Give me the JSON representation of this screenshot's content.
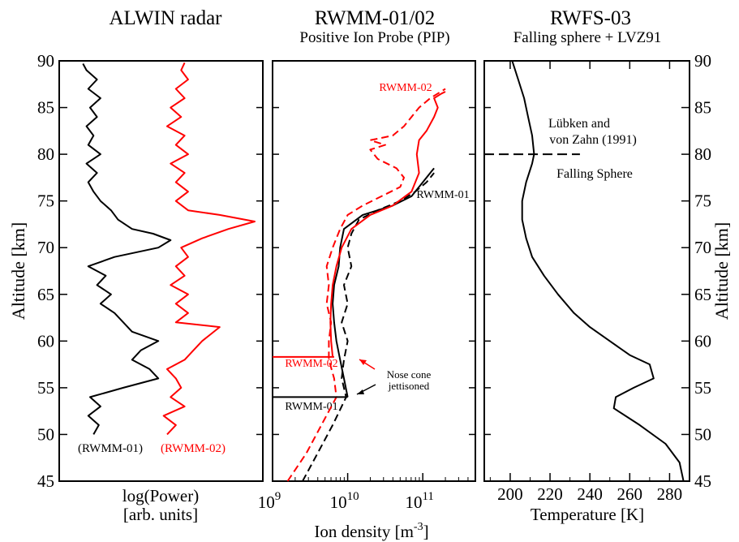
{
  "chart_data": [
    {
      "type": "line",
      "title": "ALWIN radar",
      "subtitle": "",
      "xlabel": "log(Power)",
      "xlabel2": "[arb. units]",
      "ylabel": "Altitude [km]",
      "ylim": [
        45,
        90
      ],
      "yticks": [
        "45",
        "50",
        "55",
        "60",
        "65",
        "70",
        "75",
        "80",
        "85",
        "90"
      ],
      "grid": false,
      "series": [
        {
          "name": "(RWMM-01)",
          "color": "#000000",
          "points": [
            [
              0.08,
              50
            ],
            [
              0.11,
              51
            ],
            [
              0.05,
              52
            ],
            [
              0.12,
              53
            ],
            [
              0.06,
              54
            ],
            [
              0.25,
              55
            ],
            [
              0.45,
              56
            ],
            [
              0.4,
              57
            ],
            [
              0.3,
              58
            ],
            [
              0.35,
              59
            ],
            [
              0.45,
              60
            ],
            [
              0.3,
              61
            ],
            [
              0.25,
              62
            ],
            [
              0.2,
              63
            ],
            [
              0.12,
              64
            ],
            [
              0.18,
              65
            ],
            [
              0.1,
              66
            ],
            [
              0.15,
              67
            ],
            [
              0.05,
              68
            ],
            [
              0.2,
              69
            ],
            [
              0.45,
              70
            ],
            [
              0.52,
              70.8
            ],
            [
              0.42,
              71.5
            ],
            [
              0.3,
              72
            ],
            [
              0.22,
              73
            ],
            [
              0.18,
              74
            ],
            [
              0.12,
              75
            ],
            [
              0.08,
              76
            ],
            [
              0.05,
              77
            ],
            [
              0.1,
              78
            ],
            [
              0.04,
              79
            ],
            [
              0.12,
              80
            ],
            [
              0.05,
              81
            ],
            [
              0.08,
              82
            ],
            [
              0.04,
              83
            ],
            [
              0.1,
              84
            ],
            [
              0.06,
              85
            ],
            [
              0.12,
              86
            ],
            [
              0.05,
              87
            ],
            [
              0.1,
              88
            ],
            [
              0.04,
              89
            ],
            [
              0.02,
              89.7
            ]
          ]
        },
        {
          "name": "(RWMM-02)",
          "color": "#ff0000",
          "points": [
            [
              0.5,
              50
            ],
            [
              0.55,
              51
            ],
            [
              0.48,
              52
            ],
            [
              0.6,
              53
            ],
            [
              0.52,
              54
            ],
            [
              0.58,
              55
            ],
            [
              0.55,
              56
            ],
            [
              0.5,
              57
            ],
            [
              0.6,
              58
            ],
            [
              0.65,
              59
            ],
            [
              0.7,
              60
            ],
            [
              0.8,
              61.5
            ],
            [
              0.55,
              62
            ],
            [
              0.62,
              63
            ],
            [
              0.55,
              64
            ],
            [
              0.62,
              65
            ],
            [
              0.52,
              66
            ],
            [
              0.6,
              67
            ],
            [
              0.55,
              68
            ],
            [
              0.62,
              69
            ],
            [
              0.58,
              70
            ],
            [
              0.7,
              71
            ],
            [
              0.85,
              72
            ],
            [
              1.0,
              72.8
            ],
            [
              0.8,
              73.5
            ],
            [
              0.62,
              74
            ],
            [
              0.55,
              75
            ],
            [
              0.62,
              76
            ],
            [
              0.55,
              77
            ],
            [
              0.6,
              78
            ],
            [
              0.52,
              79
            ],
            [
              0.62,
              80
            ],
            [
              0.55,
              81
            ],
            [
              0.6,
              82
            ],
            [
              0.5,
              83
            ],
            [
              0.58,
              84
            ],
            [
              0.52,
              85
            ],
            [
              0.6,
              86
            ],
            [
              0.55,
              87
            ],
            [
              0.62,
              88
            ],
            [
              0.58,
              89
            ],
            [
              0.6,
              89.8
            ]
          ]
        }
      ],
      "legend": [
        "(RWMM-01)",
        "(RWMM-02)"
      ]
    },
    {
      "type": "line",
      "title": "RWMM-01/02",
      "subtitle": "Positive Ion Probe (PIP)",
      "xlabel": "Ion density [m",
      "xlabel_sup": "-3",
      "xlabel_end": "]",
      "xscale": "log",
      "xlim_exp": [
        9,
        11.7
      ],
      "xticks": [
        {
          "base": "10",
          "exp": "9"
        },
        {
          "base": "10",
          "exp": "10"
        },
        {
          "base": "10",
          "exp": "11"
        }
      ],
      "ylim": [
        45,
        90
      ],
      "grid": false,
      "series": [
        {
          "name": "RWMM-01",
          "color": "#000000",
          "style": "solid",
          "points": [
            [
              10.0,
              54
            ],
            [
              9.95,
              56
            ],
            [
              9.9,
              58
            ],
            [
              9.85,
              60
            ],
            [
              9.82,
              62
            ],
            [
              9.8,
              64
            ],
            [
              9.82,
              66
            ],
            [
              9.88,
              68
            ],
            [
              9.9,
              70
            ],
            [
              9.95,
              72
            ],
            [
              10.2,
              73.5
            ],
            [
              10.6,
              74.5
            ],
            [
              10.85,
              75.5
            ],
            [
              11.0,
              77
            ],
            [
              11.05,
              77.5
            ],
            [
              11.12,
              78.2
            ],
            [
              11.15,
              78.5
            ]
          ]
        },
        {
          "name": "RWMM-01",
          "color": "#000000",
          "style": "dashed",
          "points": [
            [
              9.4,
              45
            ],
            [
              9.6,
              48
            ],
            [
              9.8,
              51
            ],
            [
              9.98,
              54
            ],
            [
              9.92,
              56
            ],
            [
              9.95,
              58
            ],
            [
              10.0,
              60
            ],
            [
              9.92,
              62
            ],
            [
              10.0,
              64
            ],
            [
              9.95,
              66
            ],
            [
              10.05,
              68
            ],
            [
              10.0,
              70
            ],
            [
              10.05,
              71.5
            ],
            [
              10.15,
              73
            ],
            [
              10.4,
              74
            ],
            [
              10.7,
              75
            ],
            [
              10.9,
              76
            ],
            [
              11.05,
              77
            ],
            [
              11.15,
              78
            ]
          ]
        },
        {
          "name": "RWMM-02",
          "color": "#ff0000",
          "style": "solid",
          "points": [
            [
              9.8,
              58.3
            ],
            [
              9.78,
              60
            ],
            [
              9.77,
              62
            ],
            [
              9.78,
              64
            ],
            [
              9.8,
              66
            ],
            [
              9.85,
              68
            ],
            [
              9.92,
              70
            ],
            [
              10.05,
              72
            ],
            [
              10.3,
              73.5
            ],
            [
              10.6,
              74.5
            ],
            [
              10.85,
              76
            ],
            [
              10.95,
              78
            ],
            [
              10.92,
              80
            ],
            [
              10.95,
              81.5
            ],
            [
              11.05,
              82.5
            ],
            [
              11.15,
              84
            ],
            [
              11.2,
              85
            ],
            [
              11.15,
              86
            ],
            [
              11.25,
              86.5
            ],
            [
              11.3,
              86.7
            ]
          ]
        },
        {
          "name": "RWMM-02",
          "color": "#ff0000",
          "style": "dashed",
          "points": [
            [
              9.2,
              45
            ],
            [
              9.45,
              48
            ],
            [
              9.65,
              51
            ],
            [
              9.85,
              54
            ],
            [
              9.82,
              56
            ],
            [
              9.75,
              58
            ],
            [
              9.75,
              60
            ],
            [
              9.78,
              62
            ],
            [
              9.72,
              64
            ],
            [
              9.75,
              66
            ],
            [
              9.72,
              68
            ],
            [
              9.8,
              70
            ],
            [
              9.9,
              72
            ],
            [
              10.0,
              73.5
            ],
            [
              10.2,
              74.5
            ],
            [
              10.45,
              75.5
            ],
            [
              10.7,
              76.5
            ],
            [
              10.75,
              77.5
            ],
            [
              10.65,
              78.5
            ],
            [
              10.4,
              79.5
            ],
            [
              10.3,
              80.5
            ],
            [
              10.5,
              81
            ],
            [
              10.3,
              81.5
            ],
            [
              10.6,
              82
            ],
            [
              10.75,
              83
            ],
            [
              10.85,
              84
            ],
            [
              10.95,
              85
            ],
            [
              11.1,
              86
            ],
            [
              11.2,
              86.5
            ],
            [
              11.3,
              87
            ]
          ]
        }
      ],
      "annotations": {
        "rwmm02_top": "RWMM-02",
        "rwmm01_right": "RWMM-01",
        "rwmm02_left": "RWMM-02",
        "rwmm01_left": "RWMM-01",
        "nose1": "Nose cone",
        "nose2": "jettisoned"
      },
      "markers": {
        "rwmm02_cut_altitude": 58.3,
        "rwmm01_cut_altitude": 54.0
      }
    },
    {
      "type": "line",
      "title": "RWFS-03",
      "subtitle": "Falling sphere + LVZ91",
      "xlabel": "Temperature [K]",
      "xlim": [
        187,
        290
      ],
      "xticks": [
        "200",
        "220",
        "240",
        "260",
        "280"
      ],
      "xtick_values": [
        200,
        220,
        240,
        260,
        280
      ],
      "ylabel_right": "Altitude [km]",
      "ylim": [
        45,
        90
      ],
      "yticks": [
        "45",
        "50",
        "55",
        "60",
        "65",
        "70",
        "75",
        "80",
        "85",
        "90"
      ],
      "grid": false,
      "series": [
        {
          "name": "",
          "color": "#000000",
          "style": "solid",
          "points": [
            [
              287,
              45
            ],
            [
              285,
              47
            ],
            [
              278,
              49
            ],
            [
              265,
              51
            ],
            [
              252,
              52.8
            ],
            [
              253,
              54
            ],
            [
              262,
              55
            ],
            [
              272,
              56
            ],
            [
              270,
              57.5
            ],
            [
              260,
              58.5
            ],
            [
              250,
              60
            ],
            [
              240,
              61.5
            ],
            [
              232,
              63
            ],
            [
              224,
              65
            ],
            [
              217,
              67
            ],
            [
              211,
              69
            ],
            [
              208,
              71
            ],
            [
              206,
              73
            ],
            [
              206,
              75
            ],
            [
              208,
              77
            ],
            [
              211,
              79
            ],
            [
              212,
              80
            ],
            [
              211,
              82
            ],
            [
              209,
              84
            ],
            [
              207,
              86
            ],
            [
              204,
              88
            ],
            [
              201,
              90
            ]
          ]
        }
      ],
      "divider_altitude": 80,
      "divider_xrange": [
        187,
        235
      ],
      "annotations": {
        "top1": "Lübken and",
        "top2": "von Zahn (1991)",
        "bottom": "Falling Sphere"
      }
    }
  ]
}
